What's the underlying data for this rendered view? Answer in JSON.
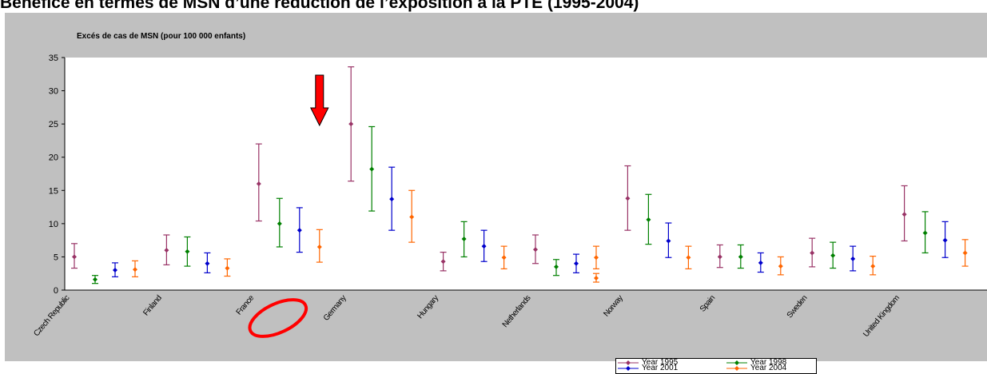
{
  "page": {
    "title": "Bénéfice en termes de MSN d’une réduction de l’exposition à la PTE (1995-2004)"
  },
  "chart_data": {
    "type": "scatter",
    "subtype": "error-bar",
    "title": "",
    "ylabel": "Excés de cas de MSN  (pour 100 000 enfants)",
    "xlabel": "",
    "ylim": [
      0,
      35
    ],
    "yticks": [
      "0",
      "5",
      "10",
      "15",
      "20",
      "25",
      "30",
      "35"
    ],
    "grid": false,
    "legend_position": "bottom-right",
    "categories": [
      "Czech Republic",
      "Finland",
      "France",
      "Germany",
      "Hungary",
      "Netherlands",
      "Norway",
      "Spain",
      "Sweden",
      "United Kingdom"
    ],
    "series": [
      {
        "name": "Year 1995",
        "color": "#993366",
        "marker": "diamond",
        "values": [
          5.0,
          6.0,
          16.0,
          25.0,
          4.3,
          6.1,
          13.8,
          5.0,
          5.6,
          11.4
        ],
        "lower": [
          3.3,
          3.8,
          10.4,
          16.4,
          2.9,
          4.0,
          9.0,
          3.4,
          3.5,
          7.4
        ],
        "upper": [
          7.0,
          8.3,
          22.0,
          33.6,
          5.7,
          8.3,
          18.7,
          6.8,
          7.8,
          15.7
        ]
      },
      {
        "name": "Year 1998",
        "color": "#008000",
        "marker": "diamond",
        "values": [
          1.6,
          5.8,
          10.0,
          18.2,
          7.7,
          3.5,
          10.6,
          5.0,
          5.2,
          8.6
        ],
        "lower": [
          1.0,
          3.6,
          6.5,
          11.9,
          5.0,
          2.2,
          6.9,
          3.3,
          3.3,
          5.6
        ],
        "upper": [
          2.2,
          8.0,
          13.8,
          24.6,
          10.3,
          4.6,
          14.4,
          6.8,
          7.2,
          11.8
        ]
      },
      {
        "name": "Year 2001",
        "color": "#0000cc",
        "marker": "diamond",
        "values": [
          3.0,
          4.0,
          9.0,
          13.7,
          6.6,
          4.0,
          7.4,
          4.1,
          4.7,
          7.5
        ],
        "lower": [
          2.0,
          2.6,
          5.7,
          9.0,
          4.3,
          2.6,
          4.9,
          2.7,
          2.9,
          4.9
        ],
        "upper": [
          4.1,
          5.6,
          12.4,
          18.5,
          9.0,
          5.4,
          10.1,
          5.6,
          6.6,
          10.3
        ]
      },
      {
        "name": "Year 2004",
        "color": "#ff6600",
        "marker": "diamond",
        "values": [
          3.1,
          3.3,
          6.5,
          11.0,
          4.9,
          4.9,
          4.9,
          3.6,
          3.6,
          5.6
        ],
        "lower": [
          2.0,
          2.1,
          4.2,
          7.2,
          3.2,
          3.2,
          3.2,
          2.3,
          2.3,
          3.6
        ],
        "upper": [
          4.4,
          4.7,
          9.1,
          15.0,
          6.6,
          6.6,
          6.6,
          5.0,
          5.1,
          7.6
        ]
      },
      {
        "name": "",
        "color": "#ff6600",
        "marker": "diamond",
        "values": [
          null,
          null,
          null,
          null,
          null,
          1.8,
          null,
          null,
          null,
          null
        ],
        "lower": [
          null,
          null,
          null,
          null,
          null,
          1.2,
          null,
          null,
          null,
          null
        ],
        "upper": [
          null,
          null,
          null,
          null,
          null,
          2.5,
          null,
          null,
          null,
          null
        ]
      }
    ],
    "annotations": [
      {
        "type": "arrow",
        "color": "#ff0000",
        "points_to": "France",
        "direction": "down"
      },
      {
        "type": "ellipse",
        "color": "#ff0000",
        "encircles": "France"
      }
    ]
  }
}
